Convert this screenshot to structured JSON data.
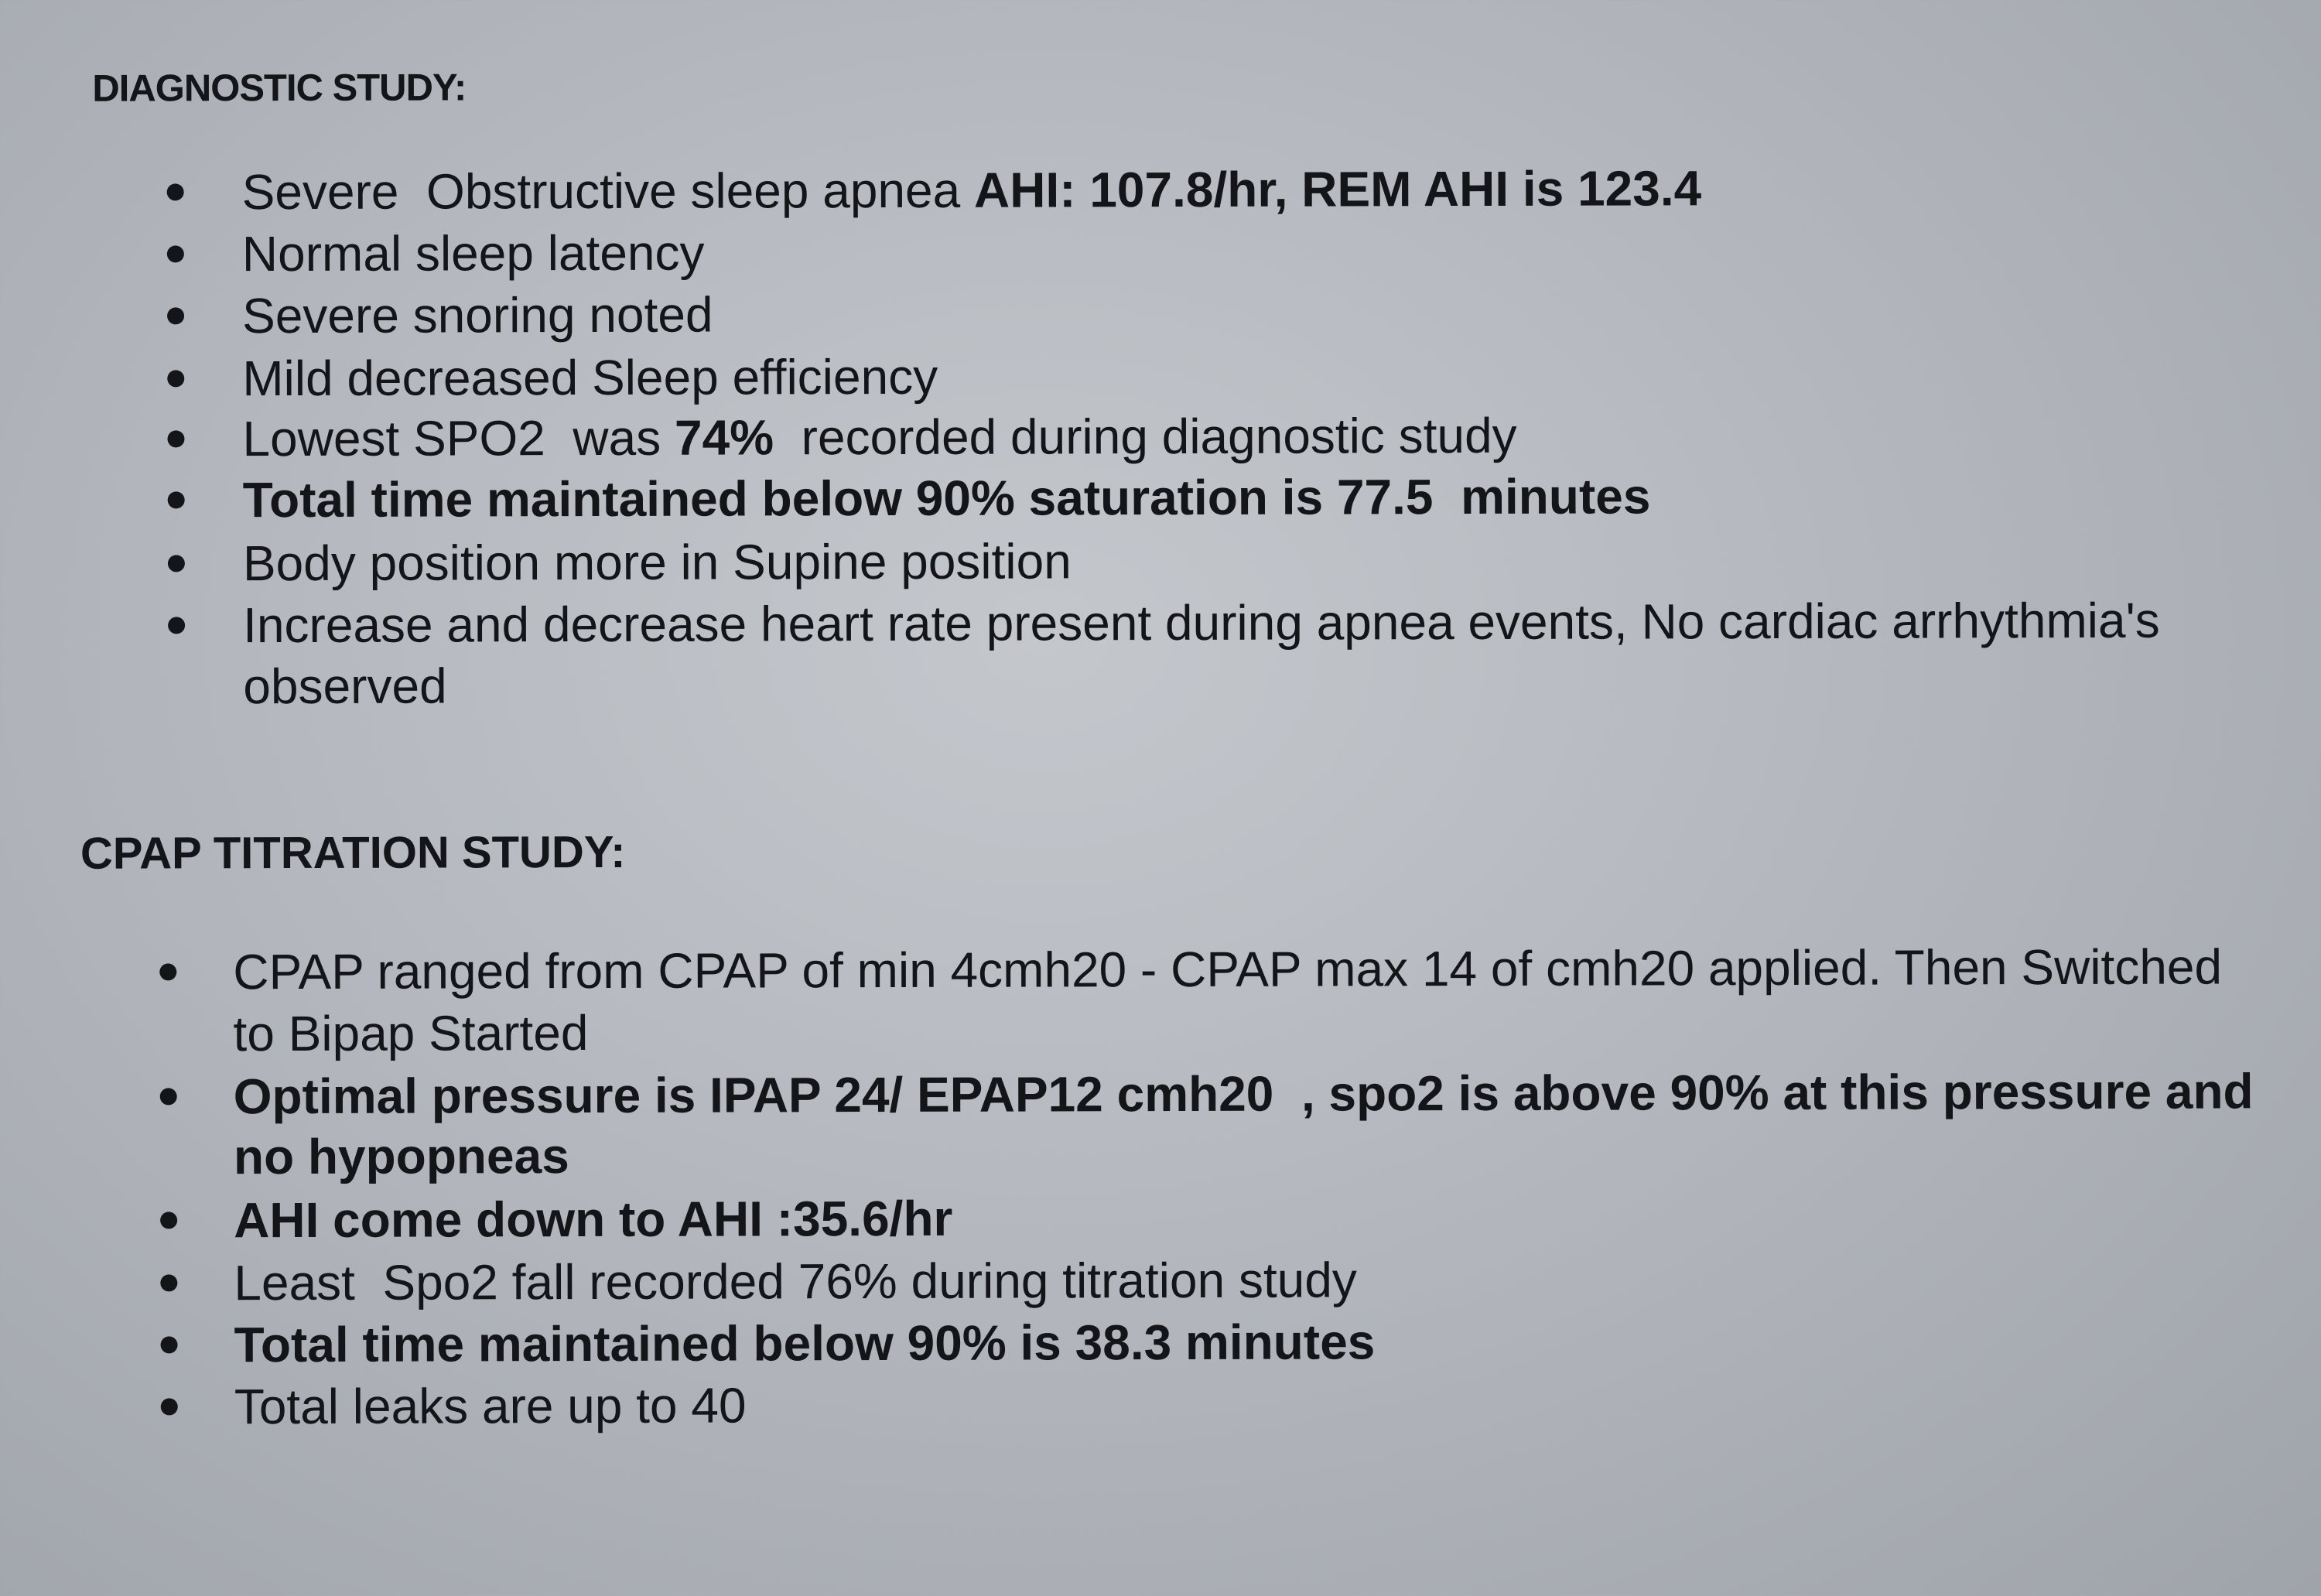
{
  "diagnostic": {
    "heading": "DIAGNOSTIC STUDY:",
    "items": [
      {
        "text": "Severe  Obstructive sleep apnea ",
        "bold": "AHI: 107.8/hr, REM AHI is 123.4"
      },
      {
        "text": "Normal sleep latency"
      },
      {
        "text": "Severe snoring noted"
      },
      {
        "text": "Mild decreased Sleep efficiency"
      },
      {
        "text": "Lowest SPO2  was ",
        "bold": "74%",
        "after": "  recorded during diagnostic study"
      },
      {
        "bold": "Total time maintained below 90% saturation is 77.5  minutes"
      },
      {
        "text": "Body position more in Supine position"
      },
      {
        "text": "Increase and decrease heart rate present during apnea events, No cardiac arrhythmia's",
        "text2": "observed"
      }
    ]
  },
  "cpap": {
    "heading": "CPAP TITRATION STUDY:",
    "items": [
      {
        "text": "CPAP ranged from CPAP of min 4cmh20 - CPAP max 14 of cmh20 applied. Then Switched",
        "text2": "to Bipap Started"
      },
      {
        "bold": "Optimal pressure is IPAP 24/ EPAP12 cmh20  , spo2 is above 90% at this pressure and",
        "bold2": "no hypopneas"
      },
      {
        "bold": "AHI come down to AHI :35.6/hr"
      },
      {
        "text": "Least  Spo2 fall recorded 76% during titration study"
      },
      {
        "bold": "Total time maintained below 90% is 38.3 minutes"
      },
      {
        "text": "Total leaks are up to 40"
      }
    ]
  }
}
